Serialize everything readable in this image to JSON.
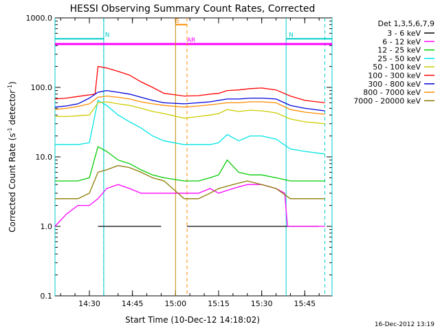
{
  "chart_data": {
    "type": "line",
    "title": "HESSI Observing Summary Count Rates, Corrected",
    "xlabel": "Start Time (10-Dec-12 14:18:02)",
    "ylabel_main": "Corrected Count Rate (s",
    "ylabel_sup1": "-1",
    "ylabel_mid": " detector",
    "ylabel_sup2": "-1",
    "ylabel_end": ")",
    "y_scale": "log",
    "ylim": [
      0.1,
      1000
    ],
    "x_range": [
      "14:18:02",
      "15:54:30"
    ],
    "x_ticks": [
      "14:30",
      "14:45",
      "15:00",
      "15:15",
      "15:30",
      "15:45"
    ],
    "y_ticks": [
      "0.1",
      "1.0",
      "10.0",
      "100.0",
      "1000.0"
    ],
    "legend_title": "Det 1,3,5,6,7,9",
    "legend_position": "right",
    "timestamp": "16-Dec-2012 13:19",
    "data_gap": [
      "14:56:30",
      "15:03:00"
    ],
    "series": [
      {
        "name": "3 - 6 keV",
        "color": "#000000",
        "points": [
          [
            "14:33",
            1
          ],
          [
            "14:38",
            1
          ],
          [
            "14:42",
            1
          ],
          [
            "14:46",
            1
          ],
          [
            "14:50",
            1
          ],
          [
            "14:55",
            1
          ],
          [
            "15:04",
            1
          ],
          [
            "15:08",
            1
          ],
          [
            "15:12",
            1
          ],
          [
            "15:15",
            1
          ],
          [
            "15:20",
            1
          ],
          [
            "15:25",
            1
          ],
          [
            "15:30",
            1
          ],
          [
            "15:35",
            1
          ],
          [
            "15:40",
            1
          ],
          [
            "15:45",
            1
          ],
          [
            "15:50",
            1
          ]
        ]
      },
      {
        "name": "6 - 12 keV",
        "color": "#ff00ff",
        "points": [
          [
            "14:18",
            1.0
          ],
          [
            "14:22",
            1.5
          ],
          [
            "14:26",
            2.0
          ],
          [
            "14:30",
            2.0
          ],
          [
            "14:33",
            2.5
          ],
          [
            "14:36",
            3.5
          ],
          [
            "14:40",
            4.0
          ],
          [
            "14:44",
            3.5
          ],
          [
            "14:48",
            3.0
          ],
          [
            "14:52",
            3.0
          ],
          [
            "14:56",
            3.0
          ],
          [
            "15:03",
            3.0
          ],
          [
            "15:08",
            3.0
          ],
          [
            "15:12",
            3.5
          ],
          [
            "15:15",
            3.0
          ],
          [
            "15:20",
            3.5
          ],
          [
            "15:25",
            4.0
          ],
          [
            "15:30",
            4.0
          ],
          [
            "15:35",
            3.5
          ],
          [
            "15:38",
            3.0
          ],
          [
            "15:39",
            1.0
          ],
          [
            "15:45",
            1.0
          ],
          [
            "15:52",
            1.0
          ]
        ]
      },
      {
        "name": "12 - 25 keV",
        "color": "#00cc00",
        "points": [
          [
            "14:18",
            4.5
          ],
          [
            "14:22",
            4.5
          ],
          [
            "14:26",
            4.5
          ],
          [
            "14:30",
            5.0
          ],
          [
            "14:33",
            14
          ],
          [
            "14:36",
            12
          ],
          [
            "14:40",
            9
          ],
          [
            "14:44",
            8
          ],
          [
            "14:48",
            6.5
          ],
          [
            "14:52",
            5.5
          ],
          [
            "14:56",
            5.0
          ],
          [
            "15:03",
            4.5
          ],
          [
            "15:08",
            4.5
          ],
          [
            "15:12",
            5.0
          ],
          [
            "15:15",
            5.5
          ],
          [
            "15:18",
            9
          ],
          [
            "15:22",
            6
          ],
          [
            "15:26",
            5.5
          ],
          [
            "15:30",
            5.5
          ],
          [
            "15:35",
            5.0
          ],
          [
            "15:40",
            4.5
          ],
          [
            "15:45",
            4.5
          ],
          [
            "15:52",
            4.5
          ]
        ]
      },
      {
        "name": "25 - 50 keV",
        "color": "#00e5e5",
        "points": [
          [
            "14:18",
            15
          ],
          [
            "14:22",
            15
          ],
          [
            "14:26",
            15
          ],
          [
            "14:30",
            16
          ],
          [
            "14:33",
            65
          ],
          [
            "14:36",
            55
          ],
          [
            "14:40",
            40
          ],
          [
            "14:44",
            32
          ],
          [
            "14:48",
            26
          ],
          [
            "14:52",
            20
          ],
          [
            "14:56",
            17
          ],
          [
            "15:03",
            15
          ],
          [
            "15:08",
            15
          ],
          [
            "15:12",
            15
          ],
          [
            "15:15",
            16
          ],
          [
            "15:18",
            21
          ],
          [
            "15:22",
            17
          ],
          [
            "15:26",
            20
          ],
          [
            "15:30",
            20
          ],
          [
            "15:35",
            18
          ],
          [
            "15:40",
            13
          ],
          [
            "15:45",
            12
          ],
          [
            "15:52",
            11
          ]
        ]
      },
      {
        "name": "50 - 100 keV",
        "color": "#cccc00",
        "points": [
          [
            "14:18",
            38
          ],
          [
            "14:22",
            38
          ],
          [
            "14:26",
            39
          ],
          [
            "14:30",
            40
          ],
          [
            "14:33",
            60
          ],
          [
            "14:36",
            62
          ],
          [
            "14:40",
            58
          ],
          [
            "14:44",
            55
          ],
          [
            "14:48",
            50
          ],
          [
            "14:52",
            45
          ],
          [
            "14:56",
            42
          ],
          [
            "15:03",
            36
          ],
          [
            "15:08",
            38
          ],
          [
            "15:12",
            40
          ],
          [
            "15:15",
            42
          ],
          [
            "15:18",
            48
          ],
          [
            "15:22",
            45
          ],
          [
            "15:26",
            47
          ],
          [
            "15:30",
            46
          ],
          [
            "15:35",
            43
          ],
          [
            "15:40",
            35
          ],
          [
            "15:45",
            32
          ],
          [
            "15:52",
            30
          ]
        ]
      },
      {
        "name": "100 - 300 keV",
        "color": "#ff0000",
        "points": [
          [
            "14:18",
            68
          ],
          [
            "14:22",
            70
          ],
          [
            "14:26",
            74
          ],
          [
            "14:30",
            78
          ],
          [
            "14:32",
            80
          ],
          [
            "14:33",
            200
          ],
          [
            "14:36",
            190
          ],
          [
            "14:40",
            170
          ],
          [
            "14:44",
            150
          ],
          [
            "14:48",
            120
          ],
          [
            "14:52",
            100
          ],
          [
            "14:56",
            82
          ],
          [
            "15:03",
            75
          ],
          [
            "15:08",
            76
          ],
          [
            "15:12",
            80
          ],
          [
            "15:15",
            82
          ],
          [
            "15:18",
            90
          ],
          [
            "15:22",
            92
          ],
          [
            "15:26",
            96
          ],
          [
            "15:30",
            98
          ],
          [
            "15:35",
            92
          ],
          [
            "15:40",
            75
          ],
          [
            "15:45",
            65
          ],
          [
            "15:52",
            60
          ]
        ]
      },
      {
        "name": "300 - 800 keV",
        "color": "#0000dd",
        "points": [
          [
            "14:18",
            52
          ],
          [
            "14:22",
            54
          ],
          [
            "14:26",
            58
          ],
          [
            "14:30",
            70
          ],
          [
            "14:33",
            85
          ],
          [
            "14:36",
            90
          ],
          [
            "14:40",
            85
          ],
          [
            "14:44",
            80
          ],
          [
            "14:48",
            72
          ],
          [
            "14:52",
            65
          ],
          [
            "14:56",
            60
          ],
          [
            "15:03",
            58
          ],
          [
            "15:08",
            60
          ],
          [
            "15:12",
            62
          ],
          [
            "15:15",
            65
          ],
          [
            "15:18",
            68
          ],
          [
            "15:22",
            68
          ],
          [
            "15:26",
            70
          ],
          [
            "15:30",
            70
          ],
          [
            "15:35",
            68
          ],
          [
            "15:40",
            55
          ],
          [
            "15:45",
            50
          ],
          [
            "15:52",
            46
          ]
        ]
      },
      {
        "name": "800 - 7000 keV",
        "color": "#ff8c00",
        "points": [
          [
            "14:18",
            48
          ],
          [
            "14:22",
            50
          ],
          [
            "14:26",
            53
          ],
          [
            "14:30",
            58
          ],
          [
            "14:33",
            72
          ],
          [
            "14:36",
            75
          ],
          [
            "14:40",
            72
          ],
          [
            "14:44",
            68
          ],
          [
            "14:48",
            62
          ],
          [
            "14:52",
            58
          ],
          [
            "14:56",
            55
          ],
          [
            "15:03",
            52
          ],
          [
            "15:08",
            54
          ],
          [
            "15:12",
            56
          ],
          [
            "15:15",
            58
          ],
          [
            "15:18",
            60
          ],
          [
            "15:22",
            60
          ],
          [
            "15:26",
            62
          ],
          [
            "15:30",
            62
          ],
          [
            "15:35",
            60
          ],
          [
            "15:40",
            48
          ],
          [
            "15:45",
            44
          ],
          [
            "15:52",
            41
          ]
        ]
      },
      {
        "name": "7000 - 20000 keV",
        "color": "#8b7a00",
        "points": [
          [
            "14:18",
            2.5
          ],
          [
            "14:22",
            2.5
          ],
          [
            "14:26",
            2.5
          ],
          [
            "14:30",
            3.0
          ],
          [
            "14:33",
            6.0
          ],
          [
            "14:36",
            6.5
          ],
          [
            "14:40",
            7.5
          ],
          [
            "14:44",
            7.0
          ],
          [
            "14:48",
            6.0
          ],
          [
            "14:52",
            5.0
          ],
          [
            "14:56",
            4.5
          ],
          [
            "15:03",
            2.5
          ],
          [
            "15:08",
            2.5
          ],
          [
            "15:12",
            3.0
          ],
          [
            "15:15",
            3.5
          ],
          [
            "15:20",
            4.0
          ],
          [
            "15:25",
            4.5
          ],
          [
            "15:30",
            4.0
          ],
          [
            "15:35",
            3.5
          ],
          [
            "15:40",
            2.5
          ],
          [
            "15:45",
            2.5
          ],
          [
            "15:52",
            2.5
          ]
        ]
      }
    ],
    "annotations": [
      {
        "text": "N",
        "color": "#00cccc",
        "x": "14:34:30",
        "x_from": "14:18:02",
        "x_to": "14:35:00",
        "y": 500,
        "dashed_at": "14:35:00",
        "kind": "night"
      },
      {
        "text": "N",
        "color": "#00cccc",
        "x": "15:38:30",
        "x_from": "15:38:30",
        "x_to": "15:54:30",
        "y": 500,
        "dashed_at": "15:52:00",
        "kind": "night"
      },
      {
        "text": "S",
        "color": "#ff8c00",
        "x": "14:59:00",
        "x_from": "15:00:00",
        "x_to": "15:04:00",
        "y": 800,
        "kind": "saa"
      },
      {
        "text": "AR",
        "color": "#ff00ff",
        "x": "15:03:00",
        "x_from": "14:18:02",
        "x_to": "15:54:30",
        "y": 420,
        "kind": "attenuator"
      }
    ],
    "vertical_markers": [
      {
        "x": "15:00:00",
        "color": "#c08a00",
        "style": "solid"
      },
      {
        "x": "15:04:00",
        "color": "#ff8c00",
        "style": "dashed"
      }
    ]
  }
}
